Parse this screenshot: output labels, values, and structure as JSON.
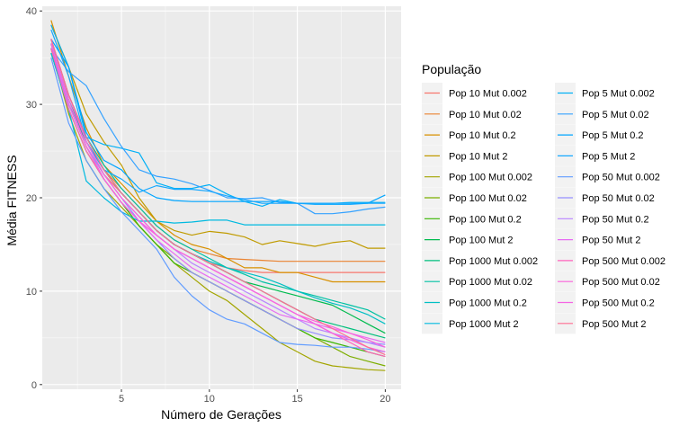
{
  "chart_data": {
    "type": "line",
    "xlabel": "Número de Gerações",
    "ylabel": "Média FITNESS",
    "xlim": [
      0.5,
      20.9
    ],
    "ylim": [
      -0.5,
      40.5
    ],
    "x_ticks": [
      5,
      10,
      15,
      20
    ],
    "y_ticks": [
      0,
      10,
      20,
      30,
      40
    ],
    "grid": true,
    "background": "#ebebeb",
    "legend": {
      "title": "População",
      "position": "right",
      "columns": 2
    },
    "x": [
      1,
      2,
      3,
      4,
      5,
      6,
      7,
      8,
      9,
      10,
      11,
      12,
      13,
      14,
      15,
      16,
      17,
      18,
      19,
      20
    ],
    "series": [
      {
        "name": "Pop 10 Mut 0.002",
        "color": "#F8766D",
        "values": [
          36.5,
          30.0,
          25.5,
          22.5,
          20.5,
          18.5,
          16.5,
          15.0,
          14.0,
          13.0,
          12.5,
          12.2,
          12.0,
          12.0,
          12.0,
          12.0,
          12.0,
          12.0,
          12.0,
          12.0
        ]
      },
      {
        "name": "Pop 10 Mut 0.02",
        "color": "#EA8331",
        "values": [
          37.0,
          31.0,
          26.5,
          23.0,
          21.0,
          19.0,
          17.0,
          15.5,
          14.5,
          14.0,
          13.5,
          13.4,
          13.3,
          13.2,
          13.2,
          13.2,
          13.2,
          13.2,
          13.2,
          13.2
        ]
      },
      {
        "name": "Pop 10 Mut 0.2",
        "color": "#D89000",
        "values": [
          39.0,
          33.0,
          27.5,
          23.5,
          21.5,
          19.5,
          17.5,
          16.0,
          15.0,
          14.5,
          13.5,
          12.5,
          12.5,
          12.0,
          12.0,
          11.5,
          11.0,
          11.0,
          11.0,
          11.0
        ]
      },
      {
        "name": "Pop 10 Mut 2",
        "color": "#C09B00",
        "values": [
          38.5,
          34.0,
          29.0,
          26.0,
          23.5,
          20.0,
          17.5,
          16.5,
          16.0,
          16.4,
          16.2,
          15.8,
          15.0,
          15.4,
          15.1,
          14.8,
          15.2,
          15.4,
          14.6,
          14.6
        ]
      },
      {
        "name": "Pop 100 Mut 0.002",
        "color": "#A3A500",
        "values": [
          36.0,
          29.0,
          24.0,
          21.0,
          19.0,
          17.0,
          15.0,
          13.0,
          11.5,
          10.0,
          9.0,
          7.5,
          6.0,
          4.5,
          3.5,
          2.5,
          2.0,
          1.8,
          1.6,
          1.5
        ]
      },
      {
        "name": "Pop 100 Mut 0.02",
        "color": "#7CAE00",
        "values": [
          36.0,
          30.0,
          25.5,
          22.0,
          19.5,
          17.0,
          15.0,
          13.5,
          12.0,
          11.0,
          10.0,
          9.0,
          8.0,
          7.0,
          6.0,
          5.0,
          4.0,
          3.0,
          2.5,
          2.0
        ]
      },
      {
        "name": "Pop 100 Mut 0.2",
        "color": "#39B600",
        "values": [
          35.5,
          29.5,
          25.0,
          22.0,
          19.5,
          17.0,
          15.0,
          13.0,
          12.0,
          11.0,
          10.0,
          9.0,
          8.0,
          7.0,
          6.0,
          5.0,
          4.5,
          4.0,
          3.5,
          3.0
        ]
      },
      {
        "name": "Pop 100 Mut 2",
        "color": "#00BB4E",
        "values": [
          36.0,
          30.0,
          26.0,
          23.0,
          20.5,
          18.5,
          16.5,
          15.0,
          14.0,
          13.0,
          12.0,
          11.0,
          10.5,
          10.0,
          9.5,
          9.0,
          8.5,
          7.5,
          6.5,
          5.5
        ]
      },
      {
        "name": "Pop 1000 Mut 0.002",
        "color": "#00BF7D",
        "values": [
          36.5,
          30.5,
          26.0,
          23.0,
          20.5,
          18.5,
          16.5,
          15.0,
          14.0,
          13.0,
          12.0,
          11.0,
          10.0,
          9.0,
          8.0,
          7.0,
          6.5,
          6.0,
          5.5,
          5.0
        ]
      },
      {
        "name": "Pop 1000 Mut 0.02",
        "color": "#00C1A3",
        "values": [
          37.0,
          31.0,
          26.5,
          23.5,
          21.0,
          19.0,
          17.0,
          15.5,
          14.5,
          13.5,
          12.5,
          11.8,
          11.0,
          10.5,
          10.0,
          9.5,
          9.0,
          8.5,
          8.0,
          7.0
        ]
      },
      {
        "name": "Pop 1000 Mut 0.2",
        "color": "#00BFC4",
        "values": [
          37.0,
          31.0,
          26.5,
          23.0,
          20.5,
          18.5,
          16.5,
          15.0,
          14.0,
          13.2,
          12.5,
          12.0,
          11.5,
          10.8,
          10.0,
          9.3,
          8.7,
          8.2,
          7.5,
          6.5
        ]
      },
      {
        "name": "Pop 1000 Mut 2",
        "color": "#00BAE0",
        "values": [
          35.5,
          29.5,
          21.8,
          20.0,
          18.5,
          17.5,
          17.5,
          17.3,
          17.4,
          17.6,
          17.6,
          17.1,
          17.1,
          17.1,
          17.1,
          17.1,
          17.1,
          17.1,
          17.1,
          17.1
        ]
      },
      {
        "name": "Pop 5 Mut 0.002",
        "color": "#00B0F6",
        "values": [
          38.5,
          34.0,
          26.5,
          25.7,
          25.3,
          24.8,
          21.6,
          21.0,
          21.0,
          21.4,
          20.4,
          19.6,
          19.1,
          19.8,
          19.4,
          19.4,
          19.4,
          19.5,
          19.5,
          19.5
        ]
      },
      {
        "name": "Pop 5 Mut 0.02",
        "color": "#35A2FF",
        "values": [
          36.0,
          33.5,
          32.0,
          28.5,
          25.5,
          23.0,
          22.3,
          22.0,
          21.5,
          20.8,
          20.0,
          19.9,
          20.0,
          19.5,
          19.4,
          18.3,
          18.3,
          18.5,
          18.8,
          19.0
        ]
      },
      {
        "name": "Pop 5 Mut 0.2",
        "color": "#00A5FF",
        "values": [
          37.0,
          34.0,
          27.0,
          24.0,
          23.0,
          21.0,
          20.0,
          19.7,
          19.6,
          19.6,
          19.6,
          19.6,
          19.6,
          19.6,
          19.4,
          19.3,
          19.3,
          19.3,
          19.4,
          20.3
        ]
      },
      {
        "name": "Pop 5 Mut 2",
        "color": "#16A8FF",
        "values": [
          38.0,
          33.0,
          26.0,
          23.0,
          22.0,
          20.6,
          21.3,
          20.9,
          20.9,
          20.7,
          20.2,
          19.8,
          19.4,
          19.4,
          19.4,
          19.4,
          19.4,
          19.4,
          19.4,
          19.4
        ]
      },
      {
        "name": "Pop 50 Mut 0.002",
        "color": "#619CFF",
        "values": [
          35.0,
          28.0,
          24.0,
          21.0,
          18.5,
          16.5,
          14.5,
          11.5,
          9.5,
          8.0,
          7.0,
          6.5,
          5.5,
          4.5,
          4.3,
          4.2,
          4.0,
          4.0,
          3.8,
          3.5
        ]
      },
      {
        "name": "Pop 50 Mut 0.02",
        "color": "#9590FF",
        "values": [
          36.0,
          30.0,
          25.5,
          22.5,
          20.0,
          17.5,
          15.5,
          13.5,
          12.0,
          11.0,
          10.0,
          9.0,
          8.0,
          7.0,
          6.0,
          5.5,
          5.0,
          4.8,
          4.5,
          4.3
        ]
      },
      {
        "name": "Pop 50 Mut 0.2",
        "color": "#B983FF",
        "values": [
          37.0,
          31.0,
          26.0,
          22.5,
          20.0,
          18.0,
          16.0,
          14.5,
          13.0,
          12.0,
          11.0,
          10.0,
          9.0,
          8.0,
          7.0,
          6.0,
          5.5,
          5.0,
          4.5,
          4.0
        ]
      },
      {
        "name": "Pop 50 Mut 2",
        "color": "#E76BF3",
        "values": [
          36.5,
          30.0,
          25.5,
          22.0,
          19.5,
          17.5,
          15.5,
          14.0,
          12.5,
          11.5,
          10.5,
          9.5,
          8.5,
          7.5,
          7.0,
          6.5,
          6.0,
          5.5,
          5.0,
          4.5
        ]
      },
      {
        "name": "Pop 500 Mut 0.002",
        "color": "#FF62BC",
        "values": [
          36.0,
          29.5,
          25.0,
          22.0,
          19.5,
          17.5,
          16.0,
          14.5,
          13.5,
          12.5,
          11.5,
          10.5,
          9.5,
          8.5,
          7.5,
          6.5,
          5.5,
          4.5,
          3.5,
          3.0
        ]
      },
      {
        "name": "Pop 500 Mut 0.02",
        "color": "#FA62DB",
        "values": [
          37.0,
          31.0,
          26.0,
          22.5,
          20.0,
          18.0,
          16.0,
          14.5,
          13.5,
          12.5,
          11.5,
          10.5,
          9.5,
          8.5,
          7.5,
          6.8,
          6.2,
          5.5,
          4.8,
          4.0
        ]
      },
      {
        "name": "Pop 500 Mut 0.2",
        "color": "#F564E3",
        "values": [
          36.5,
          30.5,
          25.5,
          22.0,
          19.5,
          17.5,
          16.0,
          14.5,
          13.5,
          12.5,
          11.5,
          10.5,
          9.5,
          8.5,
          7.5,
          6.5,
          5.5,
          4.8,
          4.0,
          3.5
        ]
      },
      {
        "name": "Pop 500 Mut 2",
        "color": "#FF6C91",
        "values": [
          37.0,
          31.0,
          26.5,
          23.0,
          20.5,
          18.5,
          16.5,
          15.0,
          14.0,
          13.0,
          12.0,
          11.0,
          10.0,
          9.0,
          8.0,
          7.0,
          6.0,
          5.0,
          4.0,
          3.2
        ]
      }
    ]
  }
}
